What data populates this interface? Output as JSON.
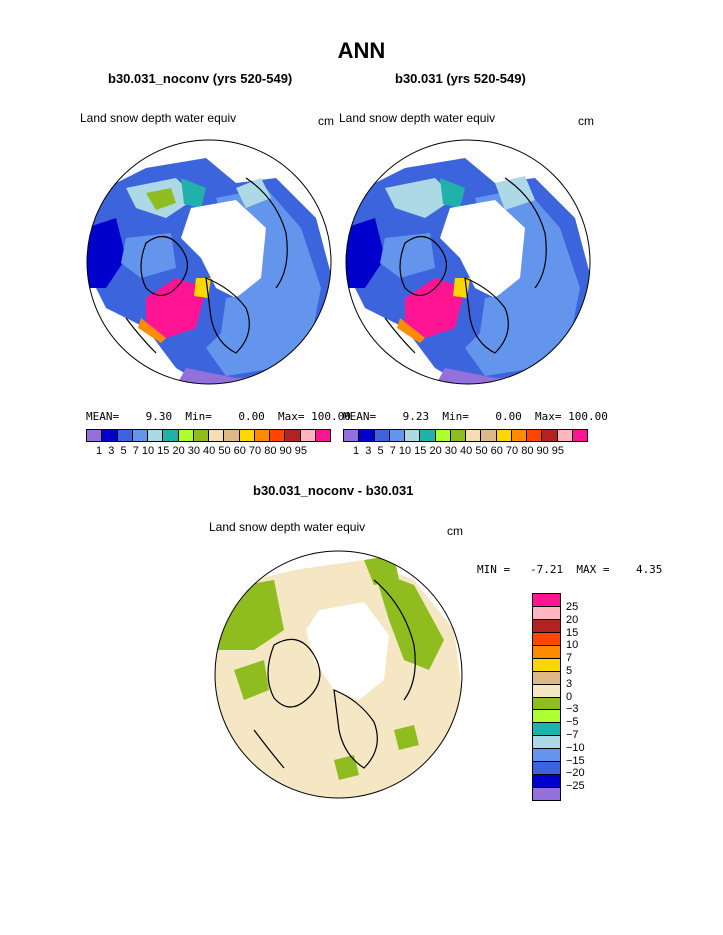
{
  "title": "ANN",
  "panels": [
    {
      "case": "b30.031_noconv (yrs 520-549)",
      "variable": "Land snow depth water equiv",
      "units": "cm",
      "stats": "MEAN=    9.30  Min=    0.00  Max= 100.00"
    },
    {
      "case": "b30.031 (yrs 520-549)",
      "variable": "Land snow depth water equiv",
      "units": "cm",
      "stats": "MEAN=    9.23  Min=    0.00  Max= 100.00"
    }
  ],
  "colorbar": {
    "labels": "1  3  5  7 10 15 20 30 40 50 60 70 80 90 95",
    "colors": [
      "#9370db",
      "#0000cd",
      "#3c64dc",
      "#6495ed",
      "#add8e6",
      "#20b2aa",
      "#adff2f",
      "#8fbc1f",
      "#f5deb3",
      "#deb887",
      "#ffd700",
      "#ff8c00",
      "#ff4500",
      "#b22222",
      "#ffb6c1",
      "#ff1493"
    ]
  },
  "diff": {
    "title": "b30.031_noconv - b30.031",
    "variable": "Land snow depth water equiv",
    "units": "cm",
    "stats": "MIN =   -7.21  MAX =    4.35",
    "levels": [
      "25",
      "20",
      "15",
      "10",
      "7",
      "5",
      "3",
      "0",
      "−3",
      "−5",
      "−7",
      "−10",
      "−15",
      "−20",
      "−25"
    ],
    "colors": [
      "#ff1493",
      "#ffb6c1",
      "#b22222",
      "#ff4500",
      "#ff8c00",
      "#ffd700",
      "#deb887",
      "#f5e6c4",
      "#8fbc1f",
      "#adff2f",
      "#20b2aa",
      "#add8e6",
      "#6495ed",
      "#3c64dc",
      "#0000cd",
      "#9370db"
    ]
  }
}
